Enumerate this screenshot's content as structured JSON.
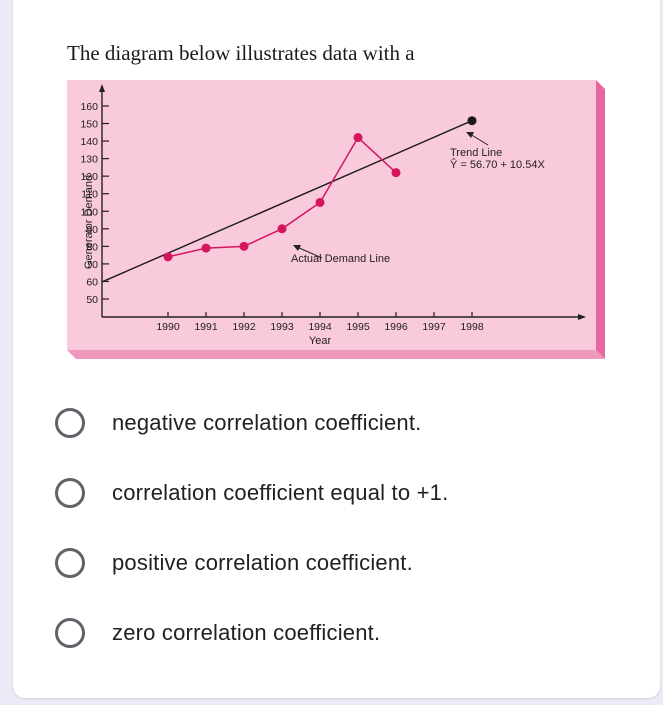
{
  "question": {
    "text": "The diagram below illustrates data with a"
  },
  "chart_data": {
    "type": "line",
    "title": "",
    "xlabel": "Year",
    "ylabel": "Generator Demand",
    "categories": [
      "1990",
      "1991",
      "1992",
      "1993",
      "1994",
      "1995",
      "1996",
      "1997",
      "1998"
    ],
    "y_ticks": [
      50,
      60,
      70,
      80,
      90,
      100,
      110,
      120,
      130,
      140,
      150,
      160
    ],
    "ylim": [
      45,
      165
    ],
    "grid": false,
    "series": [
      {
        "name": "Actual Demand Line",
        "color": "#d6155f",
        "x": [
          "1990",
          "1991",
          "1992",
          "1993",
          "1994",
          "1995",
          "1996"
        ],
        "values": [
          74,
          79,
          80,
          90,
          105,
          142,
          122
        ]
      },
      {
        "name": "Trend Line",
        "color": "#1a1a1a",
        "equation": "Ŷ = 56.70 + 10.54X",
        "x_start": 0.5,
        "y_start": 62,
        "x_end": "1998",
        "y_end": 151.6
      }
    ],
    "annotations": [
      {
        "text": "Actual Demand Line",
        "points_to": "1993-1994 segment"
      },
      {
        "text": "Trend Line",
        "points_to": "trend line near 1997"
      },
      {
        "text": "Ŷ = 56.70 + 10.54X"
      }
    ],
    "colors": {
      "panel_face": "#f9c9dc",
      "panel_side": "#e6689e",
      "panel_bottom": "#ef98bd"
    }
  },
  "options": [
    {
      "label": "negative correlation coefficient.",
      "selected": false
    },
    {
      "label": "correlation coefficient equal to +1.",
      "selected": false
    },
    {
      "label": "positive correlation coefficient.",
      "selected": false
    },
    {
      "label": "zero correlation coefficient.",
      "selected": false
    }
  ]
}
